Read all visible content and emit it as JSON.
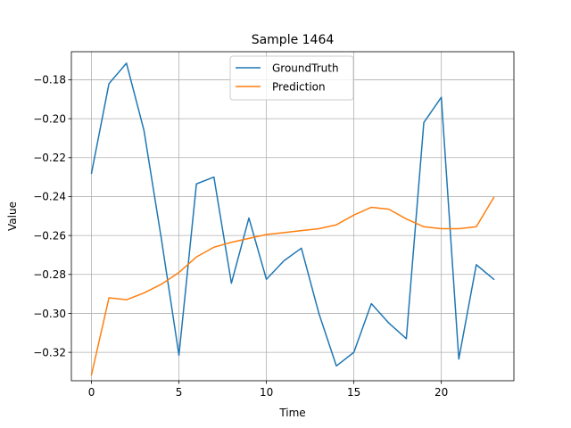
{
  "chart_data": {
    "type": "line",
    "title": "Sample 1464",
    "xlabel": "Time",
    "ylabel": "Value",
    "xlim": [
      -1.15,
      24.15
    ],
    "ylim": [
      -0.3346,
      -0.1656
    ],
    "xticks": [
      0,
      5,
      10,
      15,
      20
    ],
    "yticks": [
      -0.32,
      -0.3,
      -0.28,
      -0.26,
      -0.24,
      -0.22,
      -0.2,
      -0.18
    ],
    "ytick_labels": [
      "−0.32",
      "−0.30",
      "−0.28",
      "−0.26",
      "−0.24",
      "−0.22",
      "−0.20",
      "−0.18"
    ],
    "grid": true,
    "legend_position": "top-center",
    "x": [
      0,
      1,
      2,
      3,
      4,
      5,
      6,
      7,
      8,
      9,
      10,
      11,
      12,
      13,
      14,
      15,
      16,
      17,
      18,
      19,
      20,
      21,
      22,
      23
    ],
    "series": [
      {
        "name": "GroundTruth",
        "color": "#1f77b4",
        "values": [
          -0.228,
          -0.182,
          -0.1715,
          -0.206,
          -0.262,
          -0.3215,
          -0.2335,
          -0.23,
          -0.2845,
          -0.251,
          -0.2825,
          -0.273,
          -0.2665,
          -0.3,
          -0.327,
          -0.32,
          -0.295,
          -0.305,
          -0.313,
          -0.202,
          -0.189,
          -0.3235,
          -0.275,
          -0.2825
        ]
      },
      {
        "name": "Prediction",
        "color": "#ff7f0e",
        "values": [
          -0.3315,
          -0.292,
          -0.293,
          -0.2895,
          -0.285,
          -0.279,
          -0.271,
          -0.266,
          -0.2635,
          -0.2615,
          -0.2595,
          -0.2585,
          -0.2575,
          -0.2565,
          -0.2545,
          -0.2495,
          -0.2455,
          -0.2465,
          -0.2515,
          -0.2555,
          -0.2565,
          -0.2565,
          -0.2555,
          -0.2405
        ]
      }
    ]
  }
}
